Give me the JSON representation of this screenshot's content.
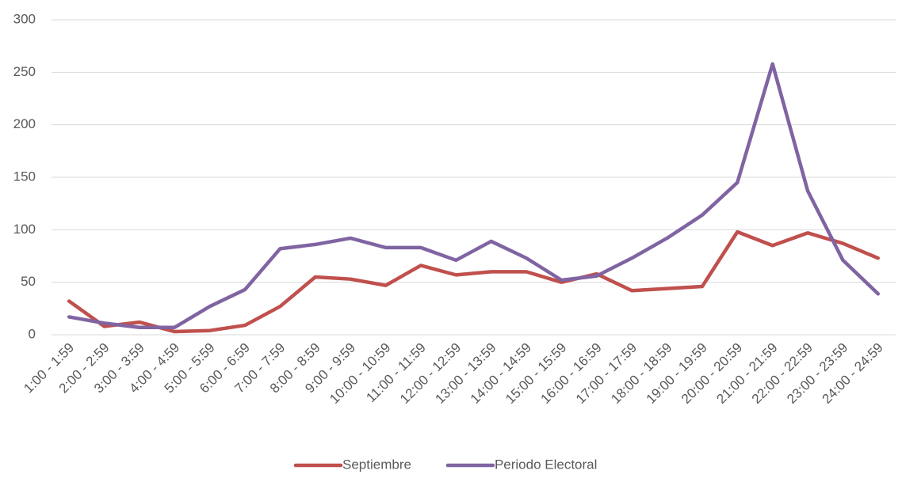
{
  "chart_data": {
    "type": "line",
    "categories": [
      "1:00 - 1:59",
      "2:00 - 2:59",
      "3:00 - 3:59",
      "4:00 - 4:59",
      "5:00 - 5:59",
      "6:00 - 6:59",
      "7:00 - 7:59",
      "8:00 - 8:59",
      "9:00 - 9:59",
      "10:00 - 10:59",
      "11:00 - 11:59",
      "12:00 - 12:59",
      "13:00 - 13:59",
      "14:00 - 14:59",
      "15:00 - 15:59",
      "16:00 - 16:59",
      "17:00 - 17:59",
      "18:00 - 18:59",
      "19:00 - 19:59",
      "20:00 - 20:59",
      "21:00 - 21:59",
      "22:00 - 22:59",
      "23:00 - 23:59",
      "24:00 - 24:59"
    ],
    "series": [
      {
        "name": "Septiembre",
        "color": "#c0504d",
        "values": [
          32,
          8,
          12,
          3,
          4,
          9,
          27,
          55,
          53,
          47,
          66,
          57,
          60,
          60,
          50,
          58,
          42,
          44,
          46,
          98,
          85,
          97,
          87,
          73
        ]
      },
      {
        "name": "Periodo Electoral",
        "color": "#8064a2",
        "values": [
          17,
          11,
          7,
          7,
          27,
          43,
          82,
          86,
          92,
          83,
          83,
          71,
          89,
          73,
          52,
          56,
          73,
          92,
          114,
          145,
          258,
          137,
          71,
          39
        ]
      }
    ],
    "ylim": [
      0,
      300
    ],
    "yticks": [
      0,
      50,
      100,
      150,
      200,
      250,
      300
    ],
    "grid": true,
    "legend": "bottom"
  }
}
